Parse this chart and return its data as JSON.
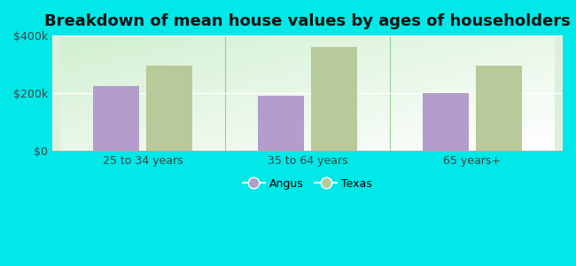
{
  "title": "Breakdown of mean house values by ages of householders",
  "categories": [
    "25 to 34 years",
    "35 to 64 years",
    "65 years+"
  ],
  "angus_values": [
    225000,
    190000,
    200000
  ],
  "texas_values": [
    295000,
    360000,
    295000
  ],
  "angus_color": "#b39dcc",
  "texas_color": "#b8c99a",
  "background_color": "#00e8e8",
  "ylim": [
    0,
    400000
  ],
  "yticks": [
    0,
    200000,
    400000
  ],
  "ytick_labels": [
    "$0",
    "$200k",
    "$400k"
  ],
  "legend_labels": [
    "Angus",
    "Texas"
  ],
  "bar_width": 0.28,
  "title_fontsize": 13,
  "tick_fontsize": 9,
  "legend_fontsize": 9,
  "plot_bg_left_top": "#c8e8c0",
  "plot_bg_right_bottom": "#f8fff8"
}
